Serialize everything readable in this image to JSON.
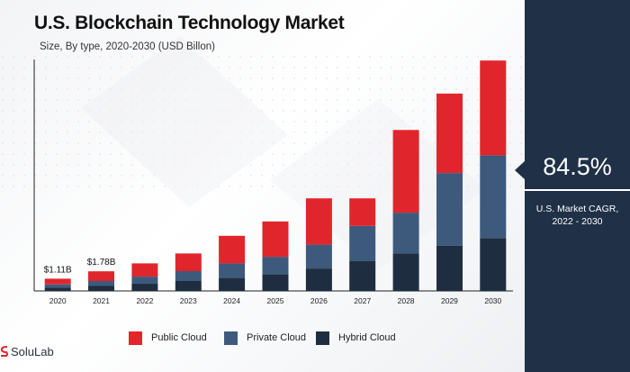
{
  "title": "U.S. Blockchain Technology Market",
  "subtitle": "Size, By type, 2020-2030 (USD Billon)",
  "kpi": {
    "value": "84.5%",
    "label": "U.S. Market CAGR,\n2022 - 2030"
  },
  "logo_text": "SoluLab",
  "colors": {
    "public": "#e0262c",
    "private": "#3d5a7d",
    "hybrid": "#1f2d40",
    "side_panel": "#1f3047"
  },
  "chart_data": {
    "type": "bar",
    "stacked": true,
    "title": "U.S. Blockchain Technology Market",
    "subtitle": "Size, By type, 2020-2030 (USD Billon)",
    "categories": [
      "2020",
      "2021",
      "2022",
      "2023",
      "2024",
      "2025",
      "2026",
      "2027",
      "2028",
      "2029",
      "2030"
    ],
    "series": [
      {
        "name": "Hybrid Cloud",
        "color": "#1f2d40",
        "values": [
          0.3,
          0.45,
          0.65,
          0.9,
          1.2,
          1.5,
          2.0,
          2.7,
          3.4,
          4.1,
          4.8
        ]
      },
      {
        "name": "Private Cloud",
        "color": "#3d5a7d",
        "values": [
          0.3,
          0.45,
          0.65,
          0.9,
          1.3,
          1.6,
          2.2,
          3.2,
          3.7,
          6.6,
          7.5
        ]
      },
      {
        "name": "Public Cloud",
        "color": "#e0262c",
        "values": [
          0.51,
          0.88,
          1.2,
          1.6,
          2.5,
          3.2,
          4.2,
          2.5,
          7.5,
          7.2,
          8.6
        ]
      }
    ],
    "data_labels": [
      {
        "category": "2020",
        "text": "$1.11B"
      },
      {
        "category": "2021",
        "text": "$1.78B"
      }
    ],
    "ylim": [
      0,
      21
    ],
    "xlabel": "",
    "ylabel": "",
    "grid": false,
    "legend": "bottom"
  }
}
